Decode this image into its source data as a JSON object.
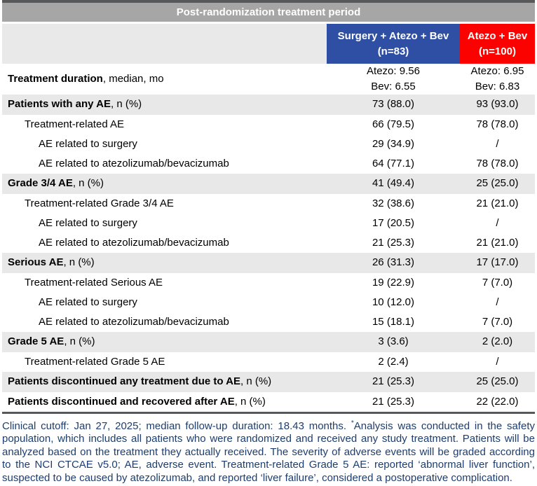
{
  "table": {
    "title": "Post-randomization treatment period"
  },
  "columns": [
    {
      "line1": "Surgery + Atezo + Bev",
      "line2": "(n=83)",
      "color": "#2e4fa3"
    },
    {
      "line1": "Atezo + Bev",
      "line2": "(n=100)",
      "color": "#fb0200"
    }
  ],
  "rows": [
    {
      "label_bold": "Treatment duration",
      "label_rest": ", median, mo",
      "indent": 0,
      "shaded": false,
      "v1": [
        "Atezo: 9.56",
        "Bev: 6.55"
      ],
      "v2": [
        "Atezo: 6.95",
        "Bev: 6.83"
      ]
    },
    {
      "label_bold": "Patients with any AE",
      "label_rest": ", n (%)",
      "indent": 0,
      "shaded": true,
      "v1": "73 (88.0)",
      "v2": "93 (93.0)"
    },
    {
      "label_bold": "",
      "label_rest": "Treatment-related AE",
      "indent": 1,
      "shaded": false,
      "v1": "66 (79.5)",
      "v2": "78 (78.0)"
    },
    {
      "label_bold": "",
      "label_rest": "AE related to surgery",
      "indent": 2,
      "shaded": false,
      "v1": "29 (34.9)",
      "v2": "/"
    },
    {
      "label_bold": "",
      "label_rest": "AE related to atezolizumab/bevacizumab",
      "indent": 2,
      "shaded": false,
      "v1": "64 (77.1)",
      "v2": "78 (78.0)"
    },
    {
      "label_bold": "Grade 3/4 AE",
      "label_rest": ", n (%)",
      "indent": 0,
      "shaded": true,
      "v1": "41 (49.4)",
      "v2": "25 (25.0)"
    },
    {
      "label_bold": "",
      "label_rest": "Treatment-related Grade 3/4 AE",
      "indent": 1,
      "shaded": false,
      "v1": "32 (38.6)",
      "v2": "21 (21.0)"
    },
    {
      "label_bold": "",
      "label_rest": "AE related to surgery",
      "indent": 2,
      "shaded": false,
      "v1": "17 (20.5)",
      "v2": "/"
    },
    {
      "label_bold": "",
      "label_rest": "AE related to atezolizumab/bevacizumab",
      "indent": 2,
      "shaded": false,
      "v1": "21 (25.3)",
      "v2": "21 (21.0)"
    },
    {
      "label_bold": "Serious AE",
      "label_rest": ", n (%)",
      "indent": 0,
      "shaded": true,
      "v1": "26 (31.3)",
      "v2": "17 (17.0)"
    },
    {
      "label_bold": "",
      "label_rest": "Treatment-related Serious AE",
      "indent": 1,
      "shaded": false,
      "v1": "19 (22.9)",
      "v2": "7 (7.0)"
    },
    {
      "label_bold": "",
      "label_rest": "AE related to surgery",
      "indent": 2,
      "shaded": false,
      "v1": "10 (12.0)",
      "v2": "/"
    },
    {
      "label_bold": "",
      "label_rest": "AE related to atezolizumab/bevacizumab",
      "indent": 2,
      "shaded": false,
      "v1": "15 (18.1)",
      "v2": "7 (7.0)"
    },
    {
      "label_bold": "Grade 5 AE",
      "label_rest": ", n (%)",
      "indent": 0,
      "shaded": true,
      "v1": "3 (3.6)",
      "v2": "2 (2.0)"
    },
    {
      "label_bold": "",
      "label_rest": "Treatment-related Grade 5 AE",
      "indent": 1,
      "shaded": false,
      "v1": "2 (2.4)",
      "v2": "/"
    },
    {
      "label_bold": "Patients discontinued any treatment due to AE",
      "label_rest": ", n (%)",
      "indent": 0,
      "shaded": true,
      "v1": "21 (25.3)",
      "v2": "25 (25.0)"
    },
    {
      "label_bold": "Patients discontinued and recovered after AE",
      "label_rest": ", n (%)",
      "indent": 0,
      "shaded": false,
      "v1": "21 (25.3)",
      "v2": "22 (22.0)"
    }
  ],
  "footnote": {
    "part1": "Clinical cutoff: Jan 27, 2025; median follow-up duration: 18.43 months. ",
    "asterisk": "*",
    "part2": "Analysis was conducted in the safety population, which includes all patients who were randomized and received any study treatment. Patients will be analyzed based on the treatment they actually received. The severity of adverse events will be graded according to the NCI CTCAE v5.0; AE, adverse event. Treatment-related Grade 5 AE: reported ‘abnormal liver function’, suspected to be caused by atezolizumab, and reported ‘liver failure’, considered a postoperative complication."
  }
}
